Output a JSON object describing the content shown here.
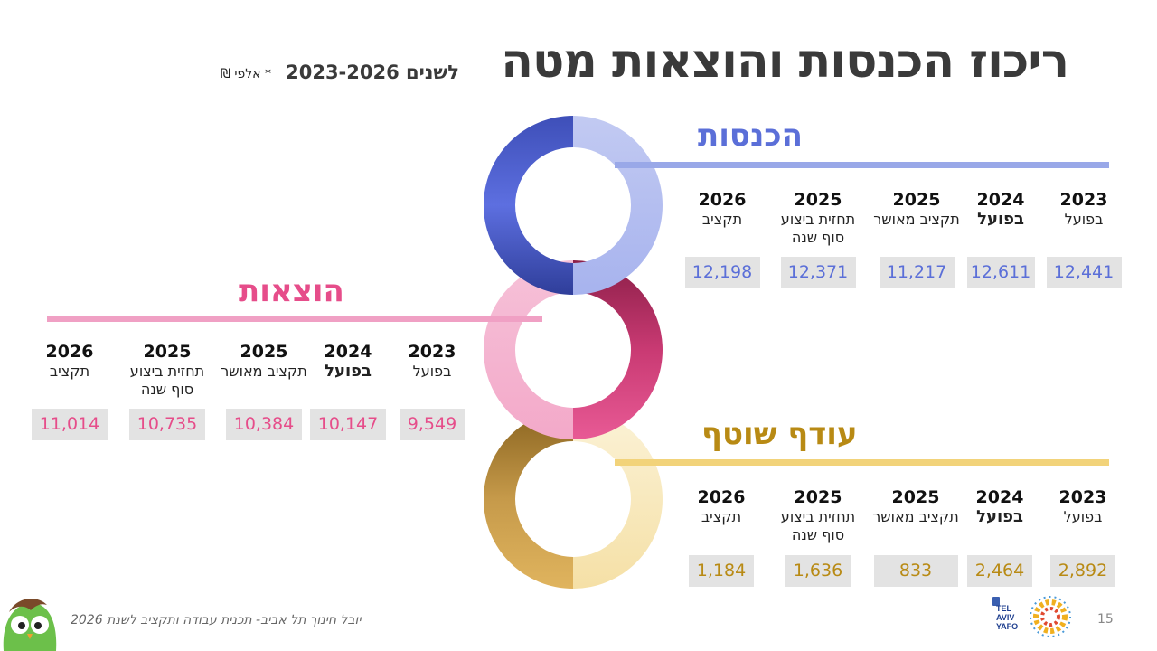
{
  "header": {
    "title": "ריכוז הכנסות והוצאות מטה",
    "subtitle": "לשנים 2023-2026",
    "unit_note": "* אלפי ₪"
  },
  "income": {
    "title": "הכנסות",
    "color": "#5b6fd8",
    "line_color": "#99a8e8",
    "columns": [
      {
        "year": "2023",
        "label": "בפועל",
        "value": "12,441"
      },
      {
        "year": "2024",
        "label": "בפועל",
        "value": "12,611"
      },
      {
        "year": "2025",
        "label": "תקציב מאושר",
        "value": "11,217"
      },
      {
        "year": "2025",
        "label": "תחזית ביצוע סוף שנה",
        "value": "12,371"
      },
      {
        "year": "2026",
        "label": "תקציב",
        "value": "12,198"
      }
    ]
  },
  "expenses": {
    "title": "הוצאות",
    "color": "#e64d8a",
    "line_color": "#f0a0c4",
    "columns": [
      {
        "year": "2023",
        "label": "בפועל",
        "value": "9,549"
      },
      {
        "year": "2024",
        "label": "בפועל",
        "value": "10,147"
      },
      {
        "year": "2025",
        "label": "תקציב מאושר",
        "value": "10,384"
      },
      {
        "year": "2025",
        "label": "תחזית ביצוע סוף שנה",
        "value": "10,735"
      },
      {
        "year": "2026",
        "label": "תקציב",
        "value": "11,014"
      }
    ]
  },
  "surplus": {
    "title": "עודף שוטף",
    "color": "#b88a14",
    "line_color": "#f2d37a",
    "columns": [
      {
        "year": "2023",
        "label": "בפועל",
        "value": "2,892"
      },
      {
        "year": "2024",
        "label": "בפועל",
        "value": "2,464"
      },
      {
        "year": "2025",
        "label": "תקציב מאושר",
        "value": "833"
      },
      {
        "year": "2025",
        "label": "תחזית ביצוע סוף שנה",
        "value": "1,636"
      },
      {
        "year": "2026",
        "label": "תקציב",
        "value": "1,184"
      }
    ]
  },
  "footer": {
    "text": "יובל חינוך תל אביב-  תכנית עבודה ותקציב לשנת 2026",
    "page_number": "15",
    "logo_text": [
      "TEL",
      "AVIV",
      "YAFO"
    ]
  }
}
